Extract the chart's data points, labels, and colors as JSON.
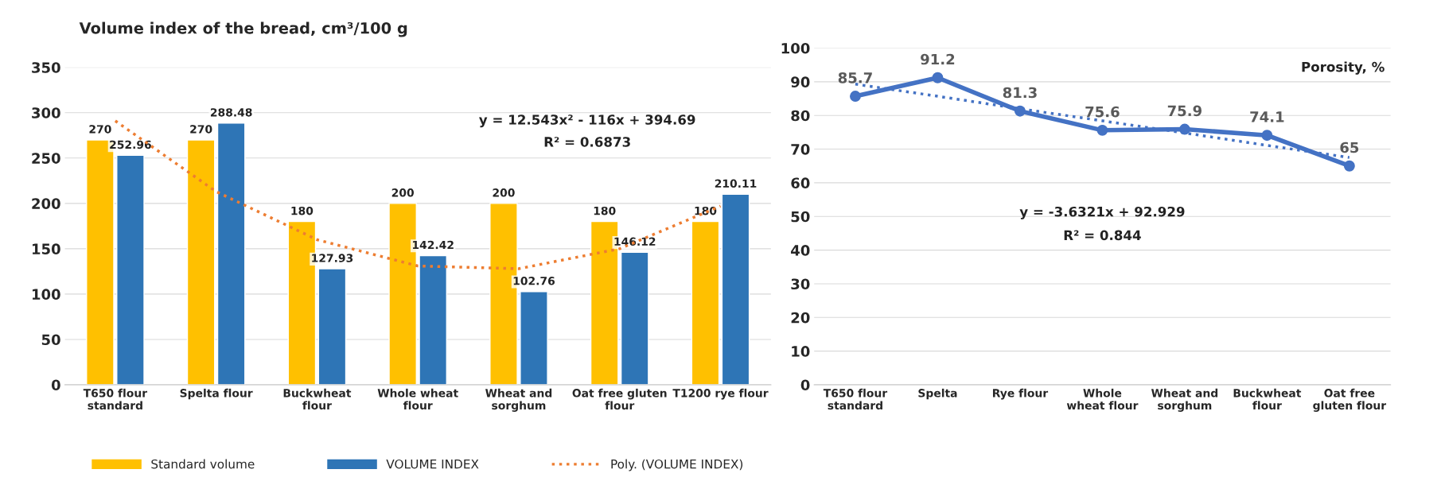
{
  "chart_data": [
    {
      "type": "bar",
      "title": "Volume index of the bread, cm³/100 g",
      "categories": [
        "T650 flour\nstandard",
        "Spelta flour",
        "Buckwheat\nflour",
        "Whole wheat\nflour",
        "Wheat and\nsorghum",
        "Oat free gluten\nflour",
        "T1200 rye flour"
      ],
      "series": [
        {
          "name": "Standard volume",
          "color": "#ffc000",
          "values": [
            270,
            270,
            180,
            200,
            200,
            180,
            180
          ]
        },
        {
          "name": "VOLUME INDEX",
          "color": "#2e75b6",
          "values": [
            252.96,
            288.48,
            127.93,
            142.42,
            102.76,
            146.12,
            210.11
          ]
        },
        {
          "name": "Poly. (VOLUME INDEX)",
          "type": "line",
          "color": "#ed7d31",
          "line_style": "dotted",
          "data_labels": false,
          "values": [
            291,
            213,
            160,
            131,
            128,
            150,
            197
          ]
        }
      ],
      "ylim": [
        0,
        350
      ],
      "yticks": [
        0,
        50,
        100,
        150,
        200,
        250,
        300,
        350
      ],
      "grid": "y",
      "legend": "bottom",
      "data_labels": true,
      "annotations": [
        "y = 12.543x² - 116x + 394.69",
        "R² = 0.6873"
      ]
    },
    {
      "type": "line",
      "categories": [
        "T650 flour\nstandard",
        "Spelta",
        "Rye flour",
        "Whole\nwheat flour",
        "Wheat and\nsorghum",
        "Buckwheat\nflour",
        "Oat free\ngluten flour"
      ],
      "series": [
        {
          "color": "#4472c4",
          "marker": "circle",
          "line_style": "solid",
          "data_labels": true,
          "values": [
            85.7,
            91.2,
            81.3,
            75.6,
            75.9,
            74.1,
            65
          ]
        },
        {
          "color": "#4472c4",
          "marker": "none",
          "line_style": "dotted",
          "data_labels": false,
          "values": [
            89.3,
            85.7,
            82.0,
            78.4,
            74.8,
            71.1,
            67.5
          ]
        }
      ],
      "ylim": [
        0,
        100
      ],
      "yticks": [
        0,
        10,
        20,
        30,
        40,
        50,
        60,
        70,
        80,
        90,
        100
      ],
      "grid": "y",
      "legend": false,
      "annotations": [
        "Porosity, %",
        "y = -3.6321x + 92.929",
        "R² = 0.844"
      ]
    }
  ]
}
